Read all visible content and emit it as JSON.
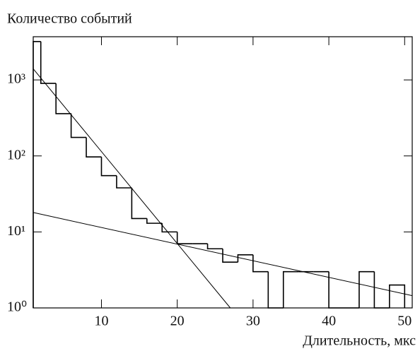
{
  "chart_data": {
    "type": "histogram",
    "title": "Количество событий",
    "x_label": "Длительность, мкс",
    "bins": [
      1,
      2,
      4,
      6,
      8,
      10,
      12,
      14,
      16,
      18,
      20,
      22,
      24,
      26,
      28,
      30,
      32,
      34,
      36,
      38,
      40,
      42,
      44,
      46,
      48,
      50
    ],
    "counts": [
      3200,
      900,
      360,
      175,
      97,
      55,
      38,
      15,
      13,
      10,
      7,
      7,
      6,
      4,
      5,
      3,
      1,
      3,
      3,
      3,
      1,
      1,
      3,
      1,
      2
    ],
    "color": "#000000",
    "fits": [
      {
        "x": [
          1,
          27
        ],
        "values": [
          1400,
          1
        ]
      },
      {
        "x": [
          1,
          51
        ],
        "values": [
          18,
          1.45
        ]
      }
    ],
    "xlim": [
      1,
      51
    ],
    "xticks": [
      10,
      20,
      30,
      40,
      50
    ],
    "ylim": [
      1,
      3700
    ],
    "yticks": [
      {
        "value": 1,
        "label": "10⁰"
      },
      {
        "value": 10,
        "label": "10¹"
      },
      {
        "value": 100,
        "label": "10²"
      },
      {
        "value": 1000,
        "label": "10³"
      }
    ],
    "log_y": true,
    "grid": false
  }
}
